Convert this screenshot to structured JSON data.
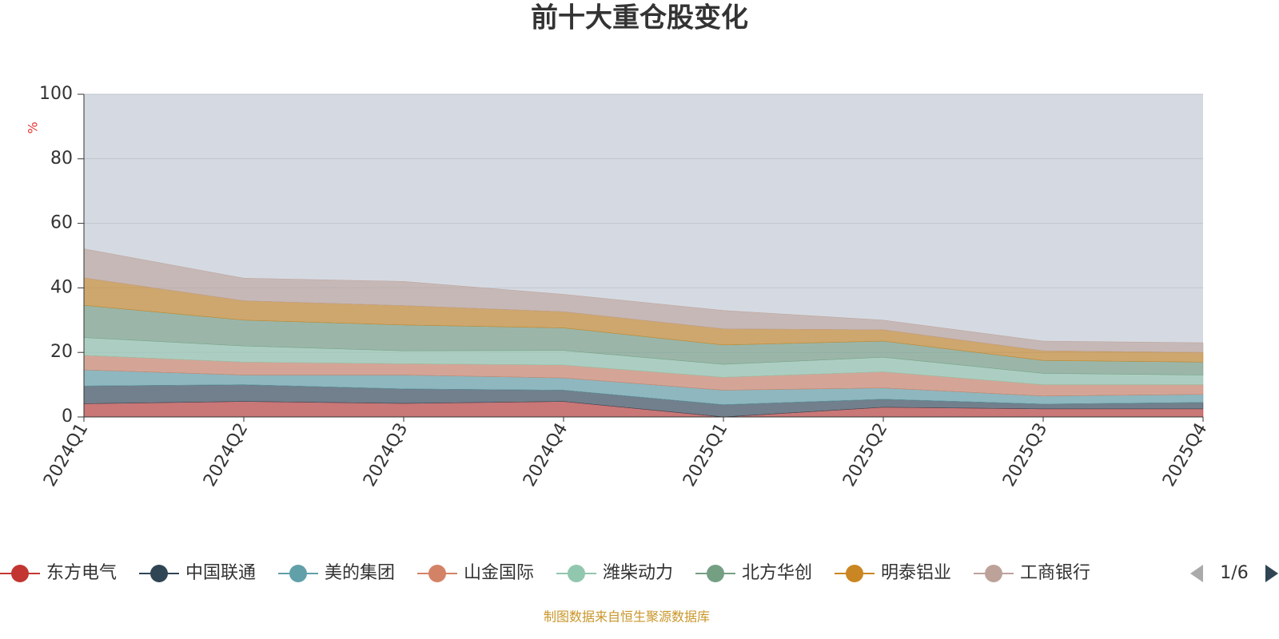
{
  "chart_data": {
    "type": "stacked_area",
    "title": "前十大重仓股变化",
    "y_axis_label": "%",
    "categories": [
      "2024Q1",
      "2024Q2",
      "2024Q3",
      "2024Q4",
      "2025Q1",
      "2025Q2",
      "2025Q3",
      "2025Q4"
    ],
    "ylim": [
      0,
      100
    ],
    "yticks": [
      0,
      20,
      40,
      60,
      80,
      100
    ],
    "grid": true,
    "series": [
      {
        "name": "东方电气",
        "color": "#c23531",
        "values": [
          4.1,
          4.8,
          4.2,
          4.8,
          0,
          3,
          2.5,
          2.5
        ]
      },
      {
        "name": "中国联通",
        "color": "#2f4554",
        "values": [
          5.5,
          5.2,
          4.5,
          3.5,
          3.8,
          2.5,
          1.5,
          2
        ]
      },
      {
        "name": "美的集团",
        "color": "#61a0a8",
        "values": [
          5,
          3,
          4.3,
          3.8,
          4.5,
          3.5,
          2.5,
          2.5
        ]
      },
      {
        "name": "山金国际",
        "color": "#d48265",
        "values": [
          4.5,
          4,
          3.5,
          4,
          4,
          5,
          3.5,
          3
        ]
      },
      {
        "name": "潍柴动力",
        "color": "#91c7ae",
        "values": [
          5.5,
          5,
          4,
          4.5,
          4,
          4.5,
          3.5,
          3
        ]
      },
      {
        "name": "北方华创",
        "color": "#749f83",
        "values": [
          10,
          8,
          8,
          7,
          6,
          5,
          4,
          4
        ]
      },
      {
        "name": "明泰铝业",
        "color": "#ca8622",
        "values": [
          8.5,
          6,
          6,
          5,
          5,
          3.5,
          3,
          3
        ]
      },
      {
        "name": "工商银行",
        "color": "#bda29a",
        "values": [
          9,
          7,
          7.5,
          5.4,
          5.7,
          3,
          3,
          3
        ]
      }
    ],
    "legend_page": "1/6",
    "source": "制图数据来自恒生聚源数据库"
  }
}
